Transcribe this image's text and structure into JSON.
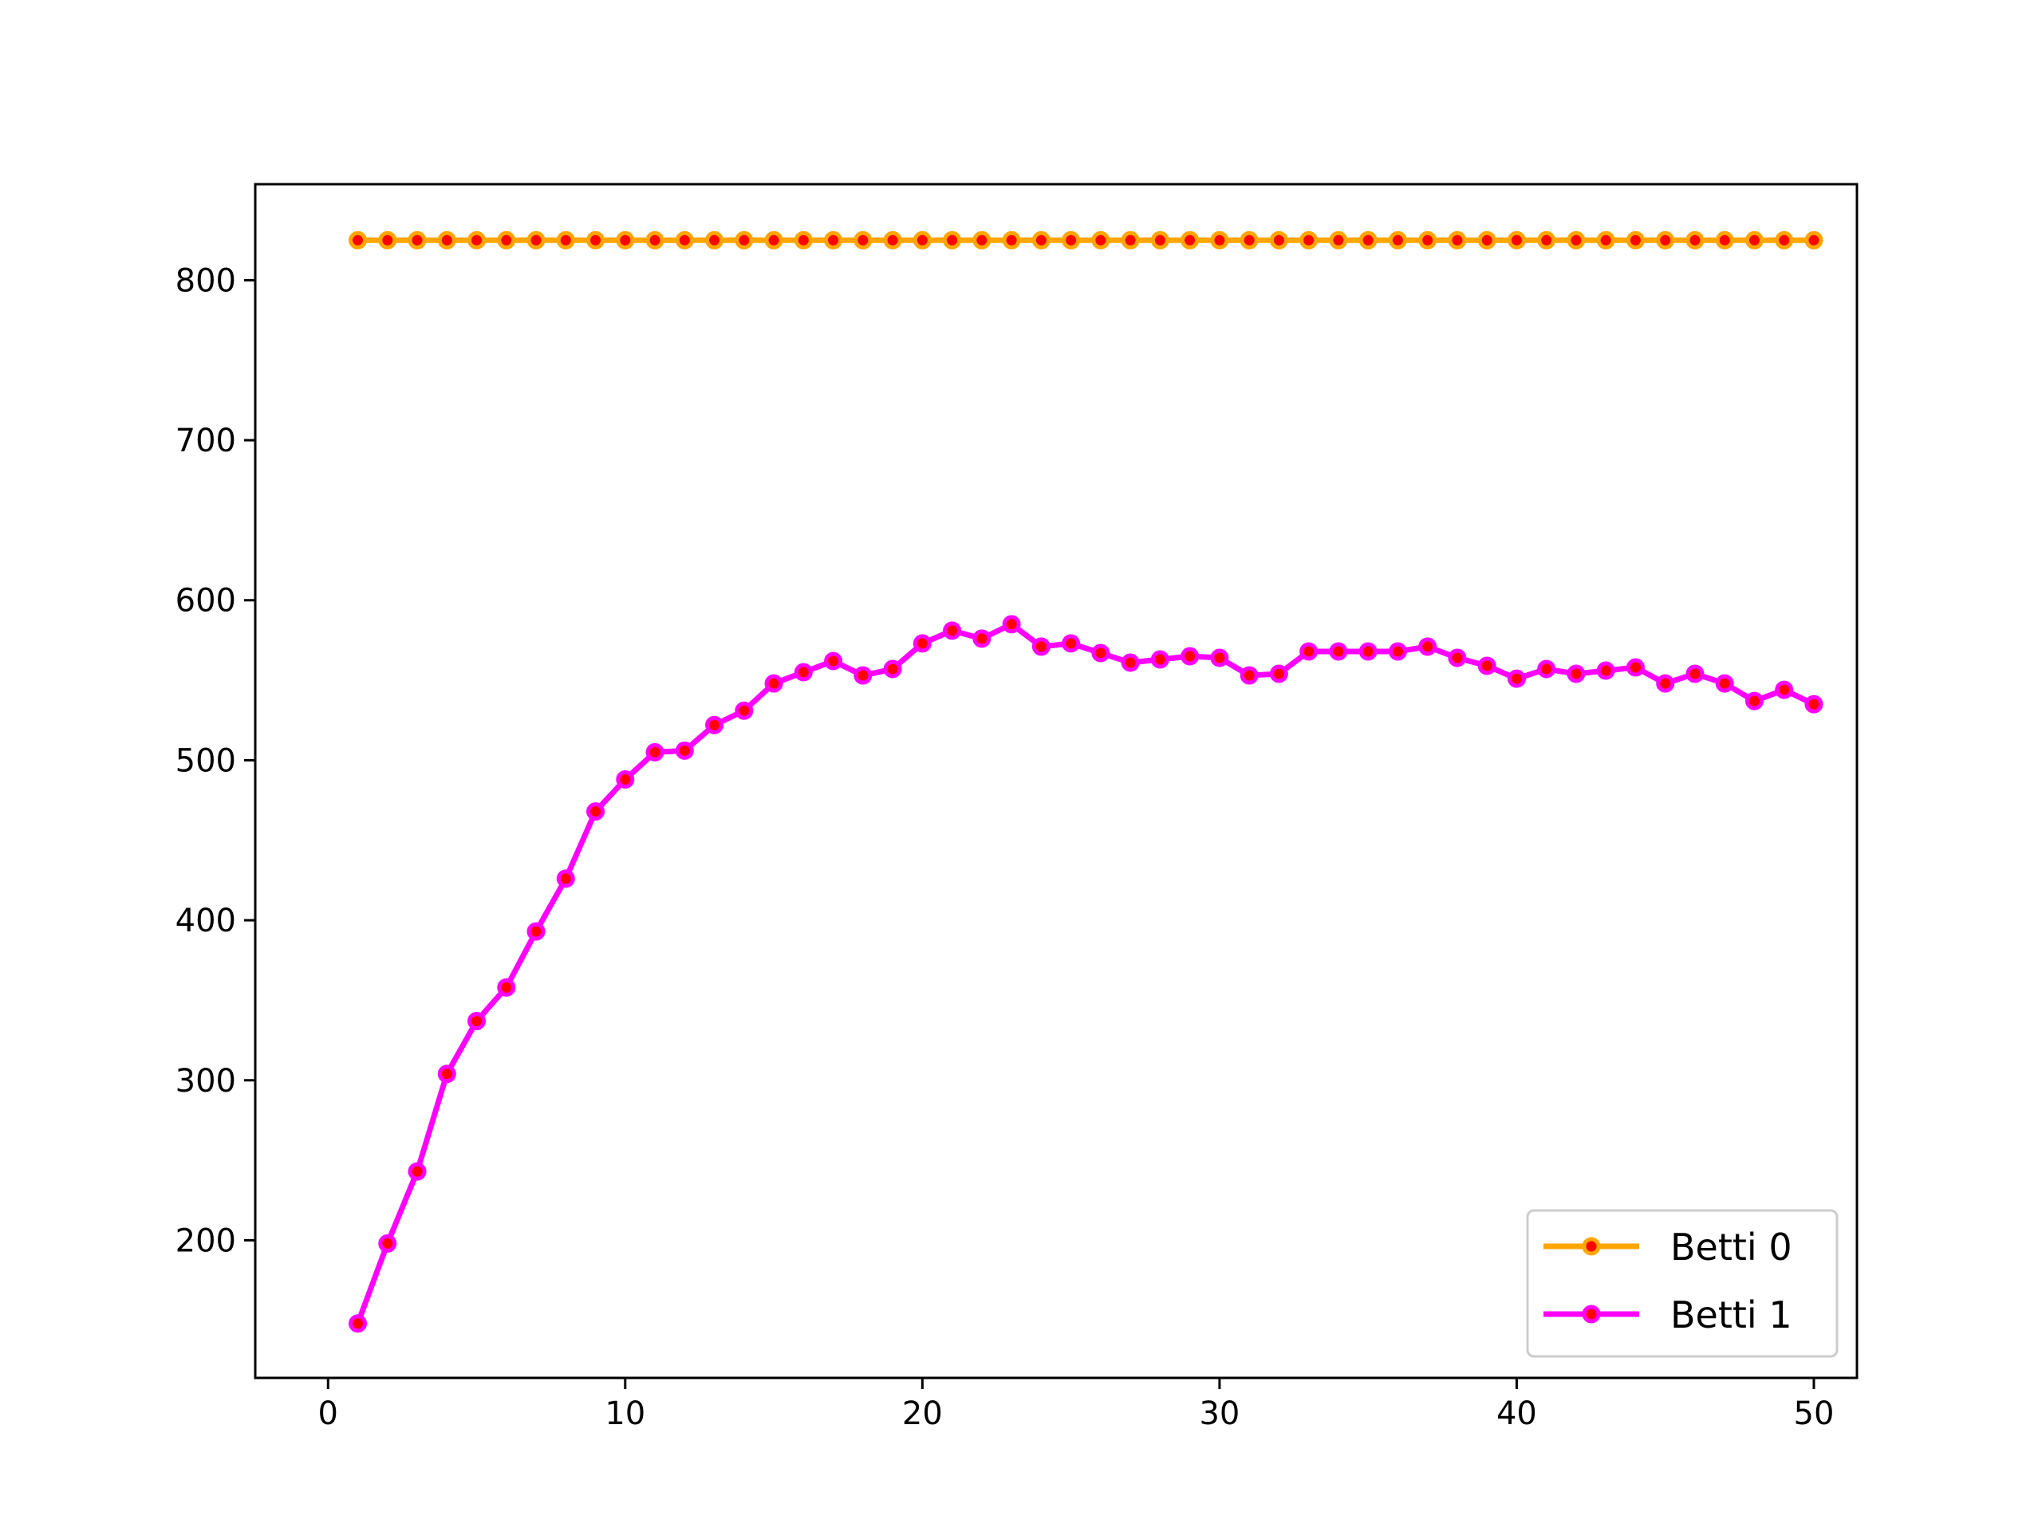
{
  "chart_data": {
    "type": "line",
    "title": "",
    "xlabel": "",
    "ylabel": "",
    "xlim": [
      -2.45,
      51.45
    ],
    "ylim": [
      114,
      860
    ],
    "grid": false,
    "legend_position": "lower-right",
    "x_ticks": [
      0,
      10,
      20,
      30,
      40,
      50
    ],
    "y_ticks": [
      200,
      300,
      400,
      500,
      600,
      700,
      800
    ],
    "x": [
      1,
      2,
      3,
      4,
      5,
      6,
      7,
      8,
      9,
      10,
      11,
      12,
      13,
      14,
      15,
      16,
      17,
      18,
      19,
      20,
      21,
      22,
      23,
      24,
      25,
      26,
      27,
      28,
      29,
      30,
      31,
      32,
      33,
      34,
      35,
      36,
      37,
      38,
      39,
      40,
      41,
      42,
      43,
      44,
      45,
      46,
      47,
      48,
      49,
      50
    ],
    "series": [
      {
        "name": "Betti 0",
        "color": "#ffa500",
        "marker_color": "#ff0000",
        "values": [
          825,
          825,
          825,
          825,
          825,
          825,
          825,
          825,
          825,
          825,
          825,
          825,
          825,
          825,
          825,
          825,
          825,
          825,
          825,
          825,
          825,
          825,
          825,
          825,
          825,
          825,
          825,
          825,
          825,
          825,
          825,
          825,
          825,
          825,
          825,
          825,
          825,
          825,
          825,
          825,
          825,
          825,
          825,
          825,
          825,
          825,
          825,
          825,
          825,
          825
        ]
      },
      {
        "name": "Betti 1",
        "color": "#ff00ff",
        "marker_color": "#ff0000",
        "values": [
          148,
          198,
          243,
          304,
          337,
          358,
          393,
          426,
          468,
          488,
          505,
          506,
          522,
          531,
          548,
          555,
          562,
          553,
          557,
          573,
          581,
          576,
          585,
          571,
          573,
          567,
          561,
          563,
          565,
          564,
          553,
          554,
          568,
          568,
          568,
          568,
          571,
          564,
          559,
          551,
          557,
          554,
          556,
          558,
          548,
          554,
          548,
          537,
          544,
          535
        ]
      }
    ]
  }
}
